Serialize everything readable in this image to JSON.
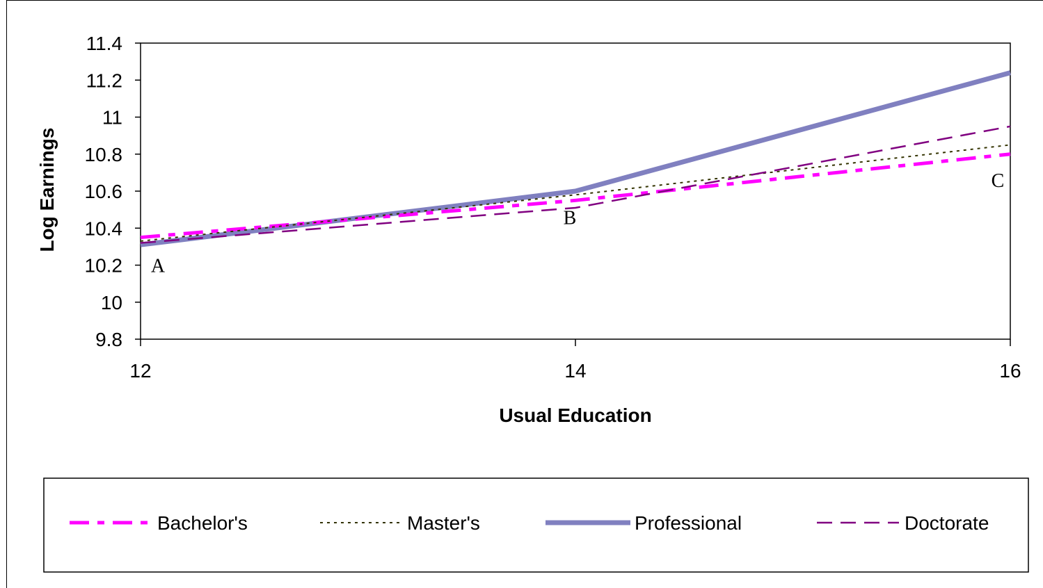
{
  "chart_data": {
    "type": "line",
    "xlabel": "Usual Education",
    "ylabel": "Log Earnings",
    "x": [
      12,
      14,
      16
    ],
    "xticks": [
      "12",
      "14",
      "16"
    ],
    "xlim": [
      12,
      16
    ],
    "ylim": [
      9.8,
      11.4
    ],
    "yticks": [
      "9.8",
      "10",
      "10.2",
      "10.4",
      "10.6",
      "10.8",
      "11",
      "11.2",
      "11.4"
    ],
    "grid": false,
    "legend_position": "bottom",
    "series": [
      {
        "name": "Bachelor's",
        "values": [
          10.35,
          10.55,
          10.8
        ],
        "color": "#ff00ff",
        "style": "long-short-dash"
      },
      {
        "name": "Master's",
        "values": [
          10.33,
          10.58,
          10.85
        ],
        "color": "#333300",
        "style": "dotted"
      },
      {
        "name": "Professional",
        "values": [
          10.31,
          10.6,
          11.24
        ],
        "color": "#8080c0",
        "style": "solid-thick"
      },
      {
        "name": "Doctorate",
        "values": [
          10.32,
          10.51,
          10.95
        ],
        "color": "#800080",
        "style": "dashed"
      }
    ],
    "annotations": [
      {
        "text": "A",
        "x": 12,
        "y": 10.2
      },
      {
        "text": "B",
        "x": 14,
        "y": 10.46
      },
      {
        "text": "C",
        "x": 16,
        "y": 10.66
      }
    ]
  }
}
